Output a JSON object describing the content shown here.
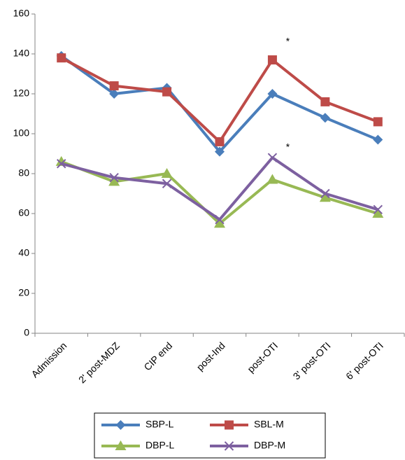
{
  "chart_data": {
    "type": "line",
    "categories": [
      "Admission",
      "2' post-MDZ",
      "CIP end",
      "post-Ind",
      "post-OTI",
      "3' post-OTI",
      "6' post-OTI"
    ],
    "series": [
      {
        "name": "SBP-L",
        "color": "#4a7ebb",
        "marker": "diamond",
        "values": [
          139,
          120,
          123,
          91,
          120,
          108,
          97
        ]
      },
      {
        "name": "SBL-M",
        "color": "#be4b48",
        "marker": "square",
        "values": [
          138,
          124,
          121,
          96,
          137,
          116,
          106
        ]
      },
      {
        "name": "DBP-L",
        "color": "#98b954",
        "marker": "triangle",
        "values": [
          86,
          76,
          80,
          55,
          77,
          68,
          60
        ]
      },
      {
        "name": "DBP-M",
        "color": "#7d60a0",
        "marker": "x",
        "values": [
          85,
          78,
          75,
          57,
          88,
          70,
          62
        ]
      }
    ],
    "annotations": [
      {
        "text": "*",
        "x": "post-OTI",
        "y": 146
      },
      {
        "text": "*",
        "x": "post-OTI",
        "y": 93
      }
    ],
    "ylim": [
      0,
      160
    ],
    "yticks": [
      0,
      20,
      40,
      60,
      80,
      100,
      120,
      140,
      160
    ],
    "grid": false,
    "legend": "bottom"
  }
}
